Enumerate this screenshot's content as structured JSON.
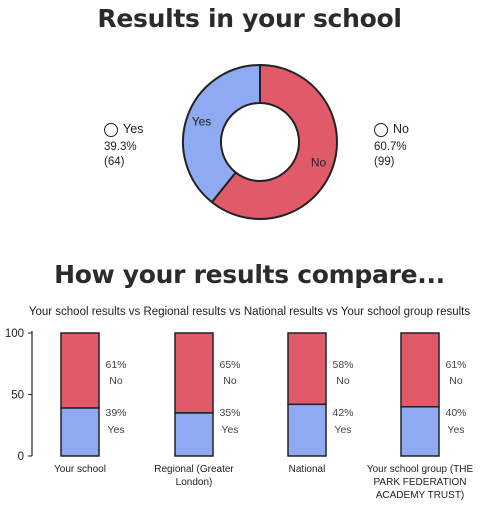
{
  "title": "Results in your school",
  "colors": {
    "yes": "#8fa9f2",
    "no": "#e05a6a",
    "outline": "#222222"
  },
  "donut": {
    "slices": [
      {
        "label": "Yes",
        "percent_text": "39.3%",
        "count_text": "(64)",
        "value": 64
      },
      {
        "label": "No",
        "percent_text": "60.7%",
        "count_text": "(99)",
        "value": 99
      }
    ]
  },
  "compare_title": "How your results compare...",
  "chart_data": {
    "type": "bar",
    "stacked": true,
    "title": "Your school results vs Regional results vs National results vs Your school group results",
    "categories": [
      "Your school",
      "Regional (Greater London)",
      "National",
      "Your school group (THE PARK FEDERATION ACADEMY TRUST)"
    ],
    "category_lines": [
      [
        "Your school"
      ],
      [
        "Regional (Greater",
        "London)"
      ],
      [
        "National"
      ],
      [
        "Your school group (THE",
        "PARK FEDERATION",
        "ACADEMY TRUST)"
      ]
    ],
    "series": [
      {
        "name": "Yes",
        "values": [
          39,
          35,
          42,
          40
        ]
      },
      {
        "name": "No",
        "values": [
          61,
          65,
          58,
          61
        ]
      }
    ],
    "yticks": [
      0,
      50,
      100
    ],
    "ylim": [
      0,
      100
    ]
  }
}
